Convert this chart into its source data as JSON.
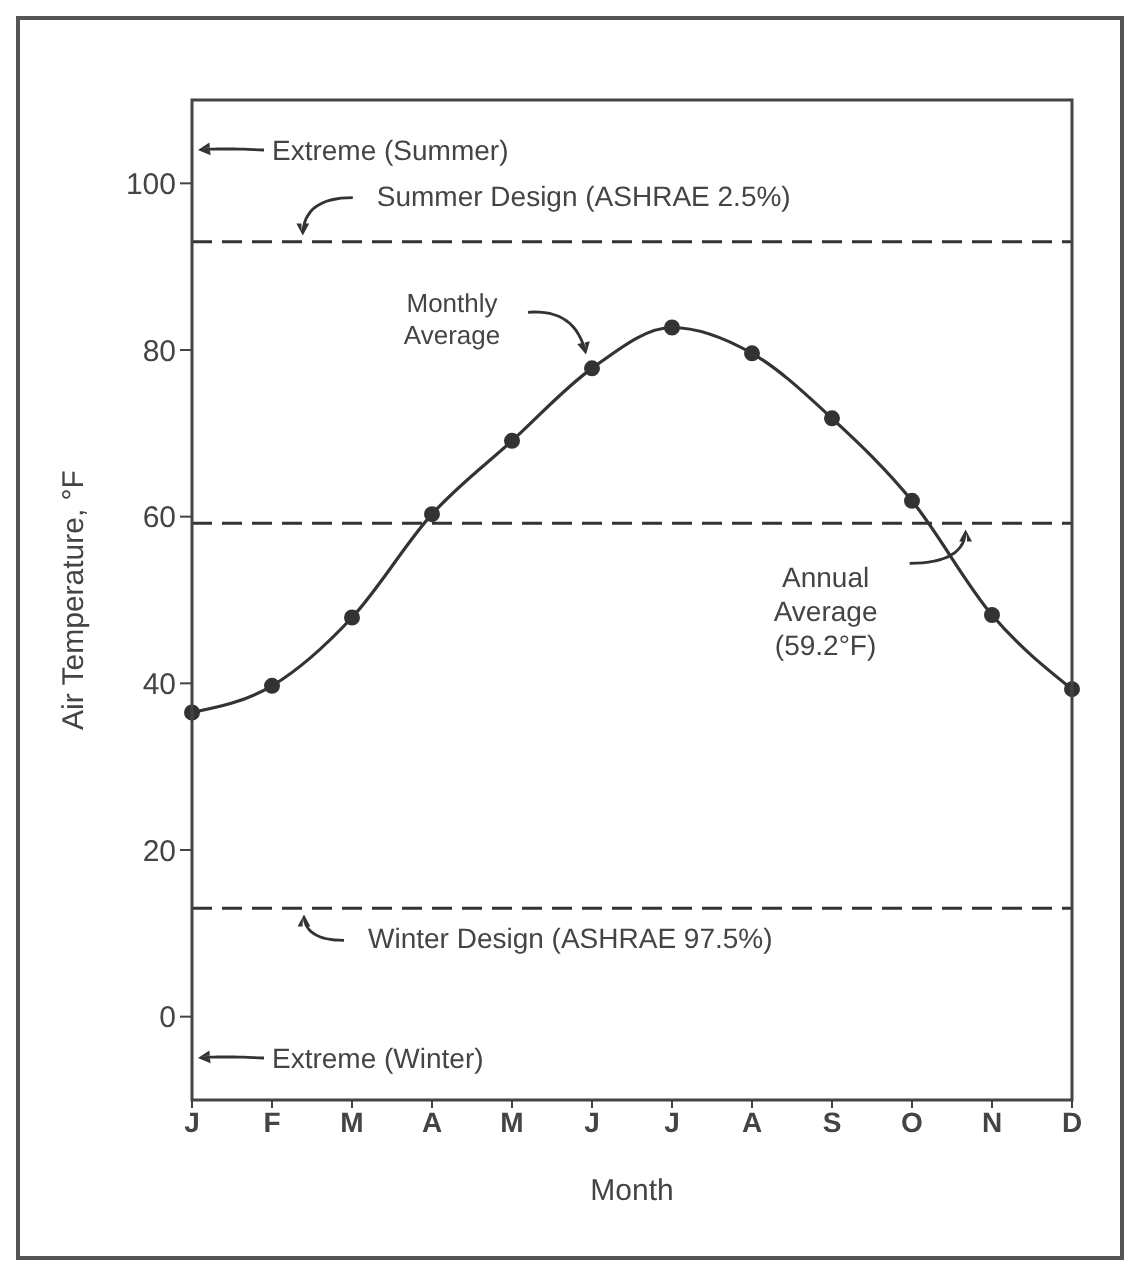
{
  "chart_data": {
    "type": "line",
    "xlabel": "Month",
    "ylabel": "Air Temperature, °F",
    "categories": [
      "J",
      "F",
      "M",
      "A",
      "M",
      "J",
      "J",
      "A",
      "S",
      "O",
      "N",
      "D"
    ],
    "series": [
      {
        "color": "#333333",
        "values": [
          36.5,
          39.7,
          47.9,
          60.3,
          69.1,
          77.8,
          82.7,
          79.6,
          71.8,
          61.9,
          48.2,
          39.3
        ]
      }
    ],
    "ylim": [
      -10,
      110
    ],
    "yticks": [
      0,
      20,
      40,
      60,
      80,
      100
    ],
    "marker": "circle",
    "line_style": "solid",
    "ref_lines": [
      {
        "axis": "y",
        "value": 93,
        "label": "Summer Design (ASHRAE 2.5%)",
        "line_style": "dashed",
        "color": "#333333"
      },
      {
        "axis": "y",
        "value": 59.2,
        "label": "Annual Average (59.2°F)",
        "line_style": "dashed",
        "color": "#333333"
      },
      {
        "axis": "y",
        "value": 13,
        "label": "Winter Design (ASHRAE 97.5%)",
        "line_style": "dashed",
        "color": "#333333"
      }
    ],
    "annotations": [
      "Extreme (Summer)",
      "Monthly Average",
      "Extreme (Winter)"
    ]
  }
}
